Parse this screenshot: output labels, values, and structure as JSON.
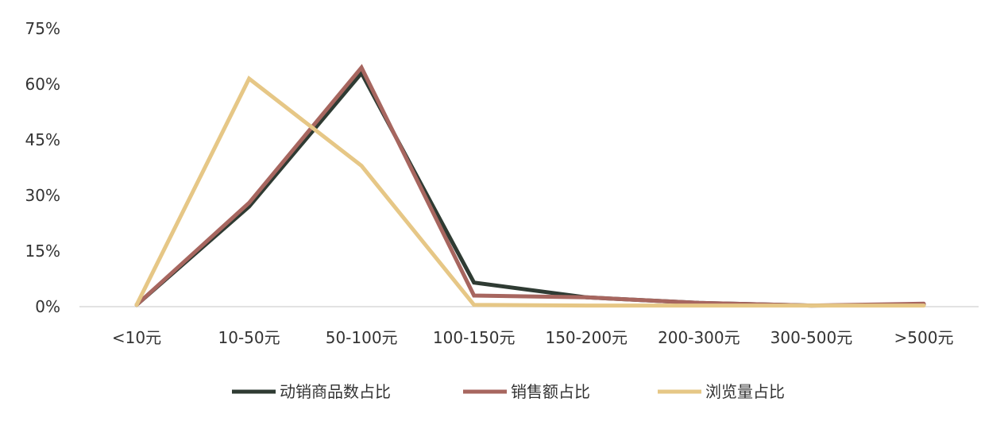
{
  "chart_data": {
    "type": "line",
    "categories": [
      "<10元",
      "10-50元",
      "50-100元",
      "100-150元",
      "150-200元",
      "200-300元",
      "300-500元",
      ">500元"
    ],
    "y_tick_labels": [
      "0%",
      "15%",
      "30%",
      "45%",
      "60%",
      "75%"
    ],
    "ylim": [
      0,
      75
    ],
    "grid": false,
    "legend_position": "bottom",
    "series": [
      {
        "name": "动销商品数占比",
        "color": "#2f3b33",
        "values": [
          0.5,
          27,
          63,
          6.5,
          2.5,
          1,
          0.3,
          0.5
        ]
      },
      {
        "name": "销售额占比",
        "color": "#a7665f",
        "values": [
          0.5,
          28,
          64.5,
          3,
          2.5,
          1,
          0.3,
          0.8
        ]
      },
      {
        "name": "浏览量占比",
        "color": "#e6c786",
        "values": [
          0.5,
          61.5,
          38,
          0.5,
          0.3,
          0.3,
          0.3,
          0.3
        ]
      }
    ]
  }
}
